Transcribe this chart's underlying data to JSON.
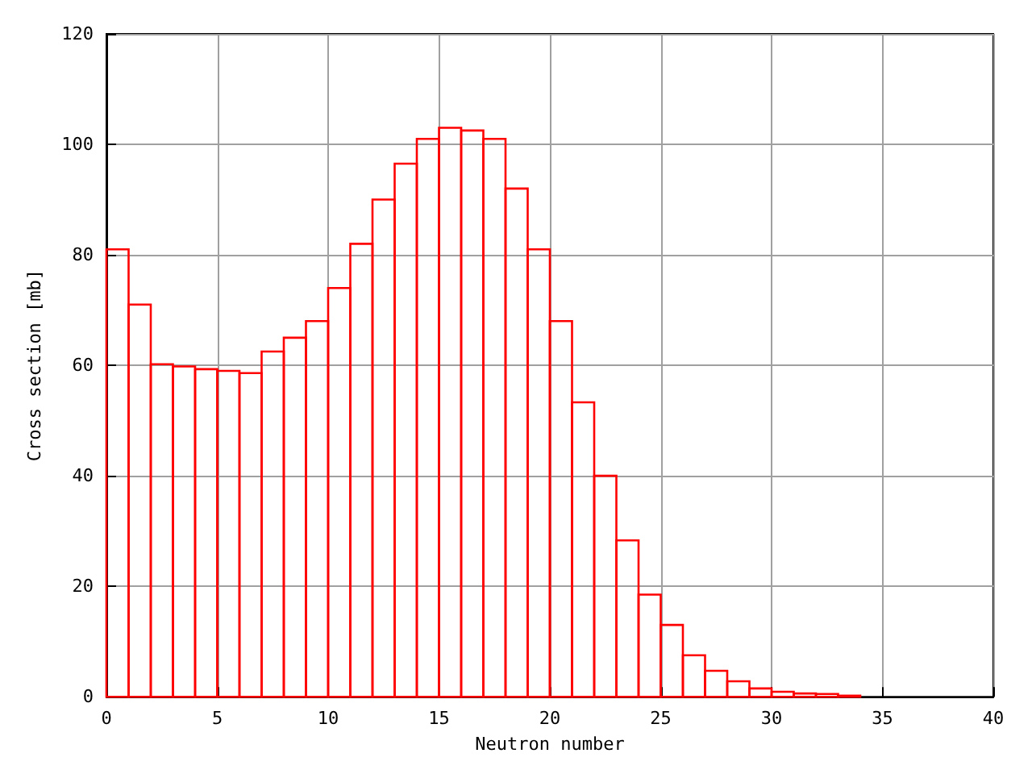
{
  "chart_data": {
    "type": "histogram",
    "xlabel": "Neutron number",
    "ylabel": "Cross section [mb]",
    "color": "#ff0000",
    "bins": [
      0,
      1,
      2,
      3,
      4,
      5,
      6,
      7,
      8,
      9,
      10,
      11,
      12,
      13,
      14,
      15,
      16,
      17,
      18,
      19,
      20,
      21,
      22,
      23,
      24,
      25,
      26,
      27,
      28,
      29,
      30,
      31,
      32,
      33,
      34
    ],
    "values": [
      81,
      71,
      60.2,
      59.8,
      59.3,
      59,
      58.6,
      62.5,
      65,
      68,
      74,
      82,
      90,
      96.5,
      101,
      103,
      102.5,
      101,
      92,
      81,
      68,
      53.3,
      40,
      28.3,
      18.5,
      13,
      7.5,
      4.7,
      2.8,
      1.5,
      0.9,
      0.6,
      0.5,
      0.2
    ],
    "xlim": [
      0,
      40
    ],
    "xticks": [
      0,
      5,
      10,
      15,
      20,
      25,
      30,
      35,
      40
    ],
    "ylim": [
      0,
      120
    ],
    "yticks": [
      0,
      20,
      40,
      60,
      80,
      100,
      120
    ],
    "grid": true
  }
}
